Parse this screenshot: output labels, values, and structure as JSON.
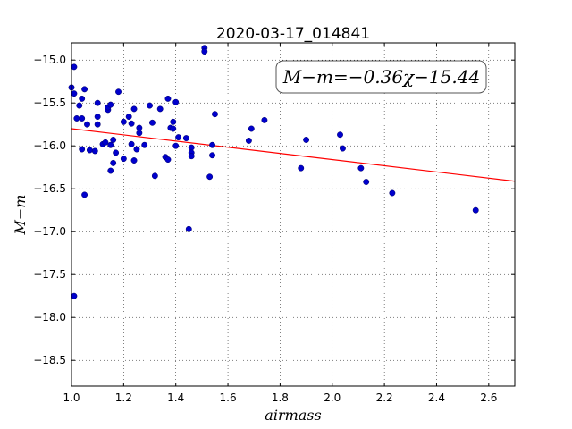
{
  "chart_data": {
    "type": "scatter",
    "title": "2020-03-17_014841",
    "xlabel": "airmass",
    "ylabel": "M−m",
    "xlim": [
      1.0,
      2.7
    ],
    "ylim": [
      -18.8,
      -14.8
    ],
    "y_inverted": true,
    "grid": true,
    "grid_style": "dotted",
    "xticks": [
      1.0,
      1.2,
      1.4,
      1.6,
      1.8,
      2.0,
      2.2,
      2.4,
      2.6
    ],
    "xtick_labels": [
      "1.0",
      "1.2",
      "1.4",
      "1.6",
      "1.8",
      "2.0",
      "2.2",
      "2.4",
      "2.6"
    ],
    "yticks": [
      -15.0,
      -15.5,
      -16.0,
      -16.5,
      -17.0,
      -17.5,
      -18.0,
      -18.5
    ],
    "ytick_labels": [
      "−15.0",
      "−15.5",
      "−16.0",
      "−16.5",
      "−17.0",
      "−17.5",
      "−18.0",
      "−18.5"
    ],
    "annotation": "M−m=−0.36χ−15.44",
    "annotation_position": "top-right",
    "fit_line": {
      "slope": -0.36,
      "intercept": -15.44,
      "color": "#ff0000"
    },
    "marker_color": "#0000cc",
    "points": [
      [
        1.0,
        -15.32
      ],
      [
        1.01,
        -17.75
      ],
      [
        1.01,
        -15.39
      ],
      [
        1.01,
        -15.08
      ],
      [
        1.02,
        -15.68
      ],
      [
        1.03,
        -15.53
      ],
      [
        1.04,
        -15.68
      ],
      [
        1.04,
        -15.45
      ],
      [
        1.04,
        -16.04
      ],
      [
        1.05,
        -16.57
      ],
      [
        1.05,
        -15.34
      ],
      [
        1.06,
        -15.75
      ],
      [
        1.07,
        -16.05
      ],
      [
        1.09,
        -16.06
      ],
      [
        1.1,
        -15.5
      ],
      [
        1.1,
        -15.66
      ],
      [
        1.1,
        -15.75
      ],
      [
        1.12,
        -15.98
      ],
      [
        1.13,
        -15.96
      ],
      [
        1.14,
        -15.58
      ],
      [
        1.14,
        -15.55
      ],
      [
        1.15,
        -15.52
      ],
      [
        1.15,
        -15.99
      ],
      [
        1.15,
        -16.29
      ],
      [
        1.16,
        -16.2
      ],
      [
        1.16,
        -15.93
      ],
      [
        1.17,
        -16.08
      ],
      [
        1.18,
        -15.37
      ],
      [
        1.2,
        -15.72
      ],
      [
        1.2,
        -16.15
      ],
      [
        1.22,
        -15.66
      ],
      [
        1.23,
        -15.74
      ],
      [
        1.23,
        -15.98
      ],
      [
        1.24,
        -16.17
      ],
      [
        1.24,
        -15.57
      ],
      [
        1.25,
        -16.04
      ],
      [
        1.26,
        -15.79
      ],
      [
        1.26,
        -15.85
      ],
      [
        1.28,
        -15.99
      ],
      [
        1.3,
        -15.53
      ],
      [
        1.31,
        -15.73
      ],
      [
        1.32,
        -16.35
      ],
      [
        1.34,
        -15.57
      ],
      [
        1.36,
        -16.13
      ],
      [
        1.37,
        -15.45
      ],
      [
        1.37,
        -16.16
      ],
      [
        1.38,
        -15.79
      ],
      [
        1.39,
        -15.72
      ],
      [
        1.39,
        -15.8
      ],
      [
        1.4,
        -15.49
      ],
      [
        1.4,
        -16.0
      ],
      [
        1.41,
        -15.9
      ],
      [
        1.44,
        -15.91
      ],
      [
        1.45,
        -16.97
      ],
      [
        1.46,
        -16.02
      ],
      [
        1.46,
        -16.08
      ],
      [
        1.46,
        -16.12
      ],
      [
        1.51,
        -14.86
      ],
      [
        1.51,
        -14.9
      ],
      [
        1.53,
        -16.36
      ],
      [
        1.54,
        -15.99
      ],
      [
        1.54,
        -16.11
      ],
      [
        1.55,
        -15.63
      ],
      [
        1.68,
        -15.94
      ],
      [
        1.69,
        -15.8
      ],
      [
        1.74,
        -15.7
      ],
      [
        1.88,
        -16.26
      ],
      [
        1.9,
        -15.93
      ],
      [
        2.03,
        -15.87
      ],
      [
        2.04,
        -16.03
      ],
      [
        2.11,
        -16.26
      ],
      [
        2.13,
        -16.42
      ],
      [
        2.23,
        -16.55
      ],
      [
        2.55,
        -16.75
      ]
    ]
  }
}
